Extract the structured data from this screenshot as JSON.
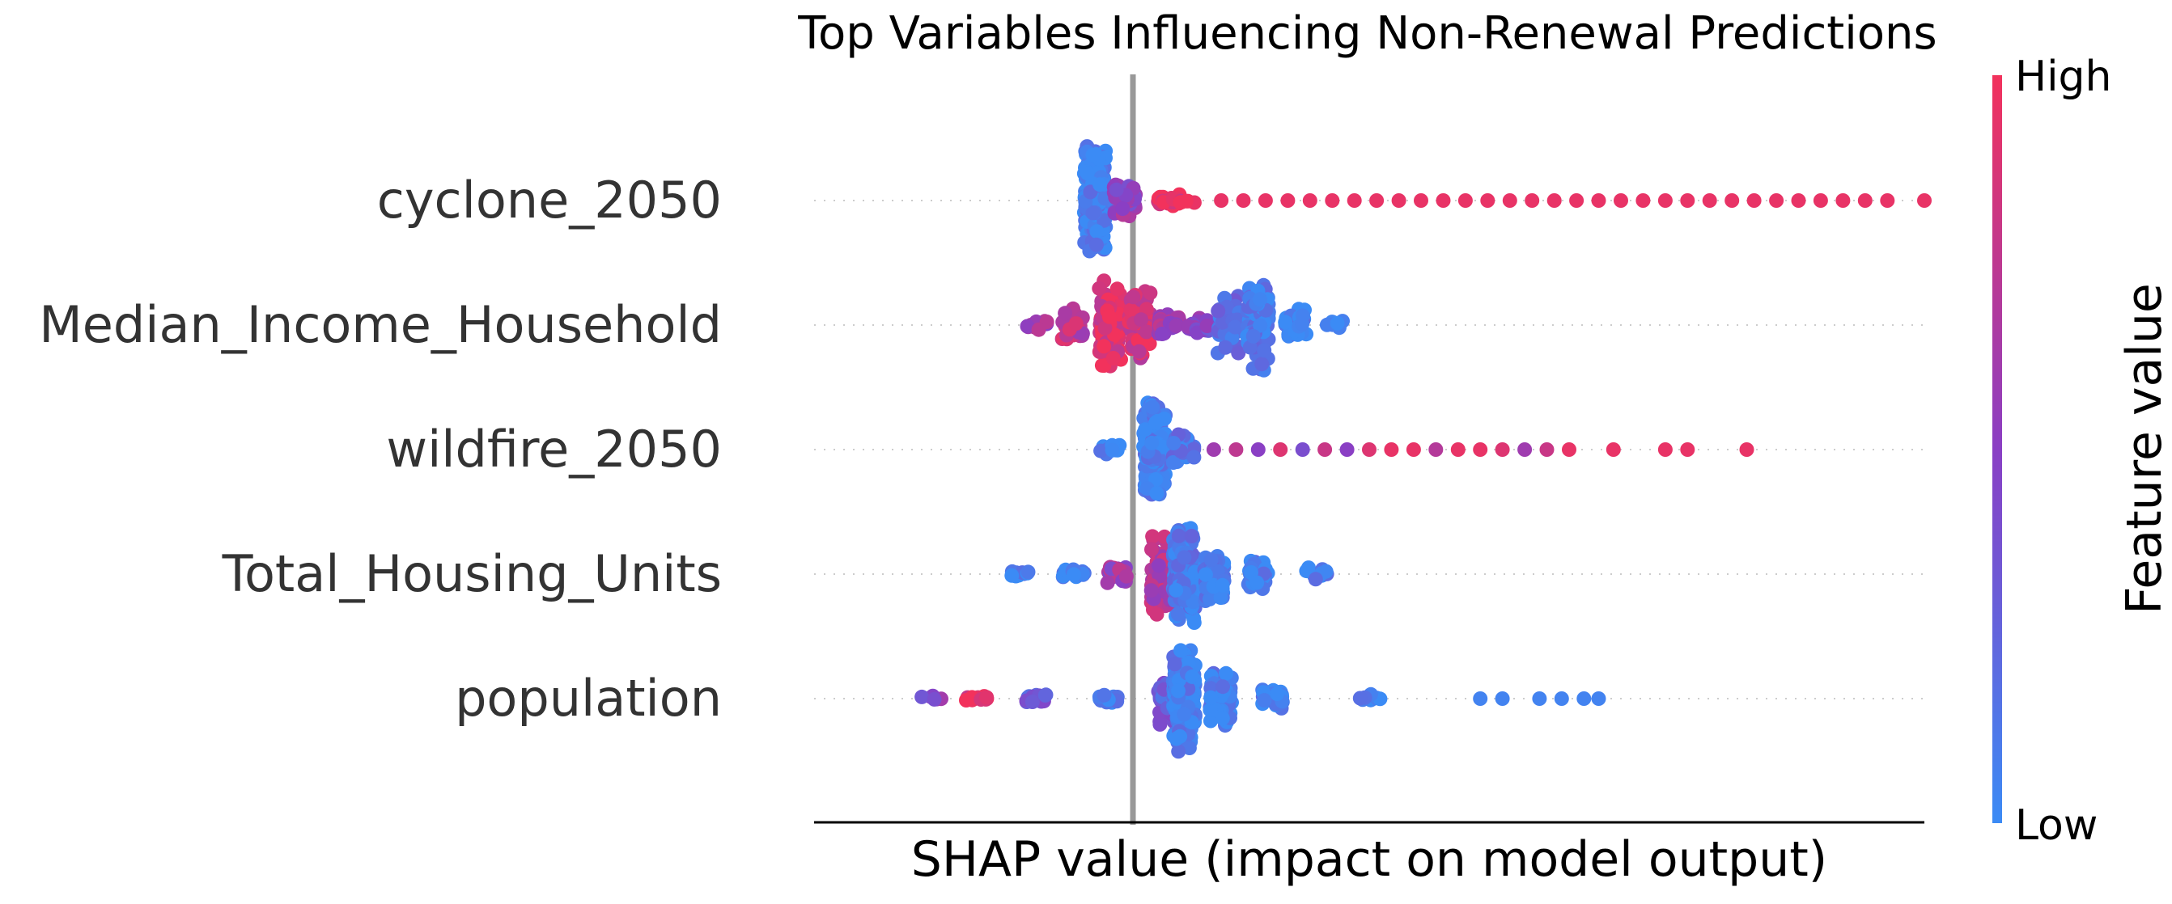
{
  "chart_data": {
    "type": "scatter",
    "subtype": "shap-beeswarm",
    "title": "Top Variables Influencing Non-Renewal Predictions",
    "xlabel": "SHAP value (impact on model output)",
    "ylabel": "",
    "x_tick_labels": "none shown",
    "xlim": [
      -0.5,
      1.0
    ],
    "zero_line": 0,
    "colorbar": {
      "label": "Feature value",
      "high_label": "High",
      "low_label": "Low",
      "low_color": "#3b8bf5",
      "mid_color": "#8a3fc4",
      "high_color": "#f2325c"
    },
    "features": [
      {
        "name": "cyclone_2050",
        "points": [
          {
            "x": -0.12,
            "spread": 0.95,
            "n": 200,
            "c": 0.05
          },
          {
            "x": -0.08,
            "spread": 0.3,
            "n": 40,
            "c": 0.55
          },
          {
            "x": -0.02,
            "spread": 0.12,
            "n": 20,
            "c": 0.95
          },
          {
            "x": 0.0,
            "spread": 0.05,
            "n": 8,
            "c": 0.95
          },
          {
            "x": 0.05,
            "n": 1,
            "c": 0.95
          },
          {
            "x": 0.08,
            "n": 1,
            "c": 0.95
          },
          {
            "x": 0.11,
            "n": 1,
            "c": 0.95
          },
          {
            "x": 0.14,
            "n": 1,
            "c": 0.95
          },
          {
            "x": 0.17,
            "n": 1,
            "c": 0.95
          },
          {
            "x": 0.2,
            "n": 1,
            "c": 0.95
          },
          {
            "x": 0.23,
            "n": 1,
            "c": 0.95
          },
          {
            "x": 0.26,
            "n": 1,
            "c": 0.95
          },
          {
            "x": 0.29,
            "n": 1,
            "c": 0.95
          },
          {
            "x": 0.32,
            "n": 1,
            "c": 0.95
          },
          {
            "x": 0.35,
            "n": 1,
            "c": 0.95
          },
          {
            "x": 0.38,
            "n": 1,
            "c": 0.95
          },
          {
            "x": 0.41,
            "n": 1,
            "c": 0.95
          },
          {
            "x": 0.44,
            "n": 1,
            "c": 0.95
          },
          {
            "x": 0.47,
            "n": 1,
            "c": 0.95
          },
          {
            "x": 0.5,
            "n": 1,
            "c": 0.95
          },
          {
            "x": 0.53,
            "n": 1,
            "c": 0.95
          },
          {
            "x": 0.56,
            "n": 1,
            "c": 0.95
          },
          {
            "x": 0.59,
            "n": 1,
            "c": 0.95
          },
          {
            "x": 0.62,
            "n": 1,
            "c": 0.95
          },
          {
            "x": 0.65,
            "n": 1,
            "c": 0.95
          },
          {
            "x": 0.68,
            "n": 1,
            "c": 0.95
          },
          {
            "x": 0.71,
            "n": 1,
            "c": 0.95
          },
          {
            "x": 0.74,
            "n": 1,
            "c": 0.95
          },
          {
            "x": 0.77,
            "n": 1,
            "c": 0.95
          },
          {
            "x": 0.8,
            "n": 1,
            "c": 0.95
          },
          {
            "x": 0.83,
            "n": 1,
            "c": 0.95
          },
          {
            "x": 0.86,
            "n": 1,
            "c": 0.95
          },
          {
            "x": 0.89,
            "n": 1,
            "c": 0.95
          },
          {
            "x": 0.92,
            "n": 1,
            "c": 0.95
          },
          {
            "x": 0.95,
            "n": 1,
            "c": 0.95
          },
          {
            "x": 1.0,
            "n": 1,
            "c": 0.95
          }
        ]
      },
      {
        "name": "Median_Income_Household",
        "points": [
          {
            "x": -0.2,
            "spread": 0.1,
            "n": 12,
            "c": 0.6
          },
          {
            "x": -0.15,
            "spread": 0.3,
            "n": 40,
            "c": 0.75
          },
          {
            "x": -0.1,
            "spread": 0.8,
            "n": 120,
            "c": 0.9
          },
          {
            "x": -0.06,
            "spread": 0.6,
            "n": 80,
            "c": 0.85
          },
          {
            "x": -0.02,
            "spread": 0.2,
            "n": 40,
            "c": 0.6
          },
          {
            "x": 0.02,
            "spread": 0.15,
            "n": 30,
            "c": 0.45
          },
          {
            "x": 0.06,
            "spread": 0.5,
            "n": 60,
            "c": 0.2
          },
          {
            "x": 0.1,
            "spread": 0.8,
            "n": 90,
            "c": 0.1
          },
          {
            "x": 0.15,
            "spread": 0.3,
            "n": 30,
            "c": 0.05
          },
          {
            "x": 0.2,
            "spread": 0.1,
            "n": 6,
            "c": 0.05
          }
        ]
      },
      {
        "name": "wildfire_2050",
        "points": [
          {
            "x": -0.1,
            "spread": 0.12,
            "n": 10,
            "c": 0.05
          },
          {
            "x": -0.04,
            "spread": 0.9,
            "n": 150,
            "c": 0.05
          },
          {
            "x": 0.0,
            "spread": 0.3,
            "n": 30,
            "c": 0.1
          },
          {
            "x": 0.04,
            "n": 1,
            "c": 0.6
          },
          {
            "x": 0.07,
            "n": 1,
            "c": 0.75
          },
          {
            "x": 0.1,
            "n": 1,
            "c": 0.5
          },
          {
            "x": 0.13,
            "n": 1,
            "c": 0.9
          },
          {
            "x": 0.16,
            "n": 1,
            "c": 0.4
          },
          {
            "x": 0.19,
            "n": 1,
            "c": 0.8
          },
          {
            "x": 0.22,
            "n": 1,
            "c": 0.5
          },
          {
            "x": 0.25,
            "n": 1,
            "c": 0.9
          },
          {
            "x": 0.28,
            "n": 1,
            "c": 0.95
          },
          {
            "x": 0.31,
            "n": 1,
            "c": 0.95
          },
          {
            "x": 0.34,
            "n": 1,
            "c": 0.7
          },
          {
            "x": 0.37,
            "n": 1,
            "c": 0.95
          },
          {
            "x": 0.4,
            "n": 1,
            "c": 0.95
          },
          {
            "x": 0.43,
            "n": 1,
            "c": 0.9
          },
          {
            "x": 0.46,
            "n": 1,
            "c": 0.6
          },
          {
            "x": 0.49,
            "n": 1,
            "c": 0.8
          },
          {
            "x": 0.52,
            "n": 1,
            "c": 0.95
          },
          {
            "x": 0.58,
            "n": 1,
            "c": 0.95
          },
          {
            "x": 0.65,
            "n": 1,
            "c": 0.95
          },
          {
            "x": 0.68,
            "n": 1,
            "c": 0.95
          },
          {
            "x": 0.76,
            "n": 1,
            "c": 0.95
          }
        ]
      },
      {
        "name": "Total_Housing_Units",
        "points": [
          {
            "x": -0.22,
            "spread": 0.05,
            "n": 12,
            "c": 0.05
          },
          {
            "x": -0.15,
            "spread": 0.1,
            "n": 20,
            "c": 0.1
          },
          {
            "x": -0.09,
            "spread": 0.2,
            "n": 20,
            "c": 0.6
          },
          {
            "x": -0.03,
            "spread": 0.7,
            "n": 90,
            "c": 0.7
          },
          {
            "x": 0.0,
            "spread": 0.9,
            "n": 150,
            "c": 0.1
          },
          {
            "x": 0.04,
            "spread": 0.5,
            "n": 60,
            "c": 0.05
          },
          {
            "x": 0.1,
            "spread": 0.3,
            "n": 40,
            "c": 0.05
          },
          {
            "x": 0.18,
            "spread": 0.12,
            "n": 10,
            "c": 0.05
          }
        ]
      },
      {
        "name": "population",
        "points": [
          {
            "x": -0.34,
            "spread": 0.05,
            "n": 6,
            "c": 0.5
          },
          {
            "x": -0.28,
            "spread": 0.05,
            "n": 12,
            "c": 0.9
          },
          {
            "x": -0.2,
            "spread": 0.08,
            "n": 20,
            "c": 0.3
          },
          {
            "x": -0.1,
            "spread": 0.1,
            "n": 20,
            "c": 0.05
          },
          {
            "x": -0.02,
            "spread": 0.5,
            "n": 60,
            "c": 0.3
          },
          {
            "x": 0.0,
            "spread": 0.95,
            "n": 180,
            "c": 0.05
          },
          {
            "x": 0.05,
            "spread": 0.5,
            "n": 60,
            "c": 0.05
          },
          {
            "x": 0.12,
            "spread": 0.2,
            "n": 30,
            "c": 0.05
          },
          {
            "x": 0.25,
            "spread": 0.08,
            "n": 10,
            "c": 0.05
          },
          {
            "x": 0.4,
            "n": 1,
            "c": 0.05
          },
          {
            "x": 0.43,
            "n": 1,
            "c": 0.05
          },
          {
            "x": 0.48,
            "n": 1,
            "c": 0.05
          },
          {
            "x": 0.51,
            "n": 1,
            "c": 0.05
          },
          {
            "x": 0.54,
            "n": 1,
            "c": 0.05
          },
          {
            "x": 0.56,
            "n": 1,
            "c": 0.05
          }
        ]
      }
    ]
  }
}
